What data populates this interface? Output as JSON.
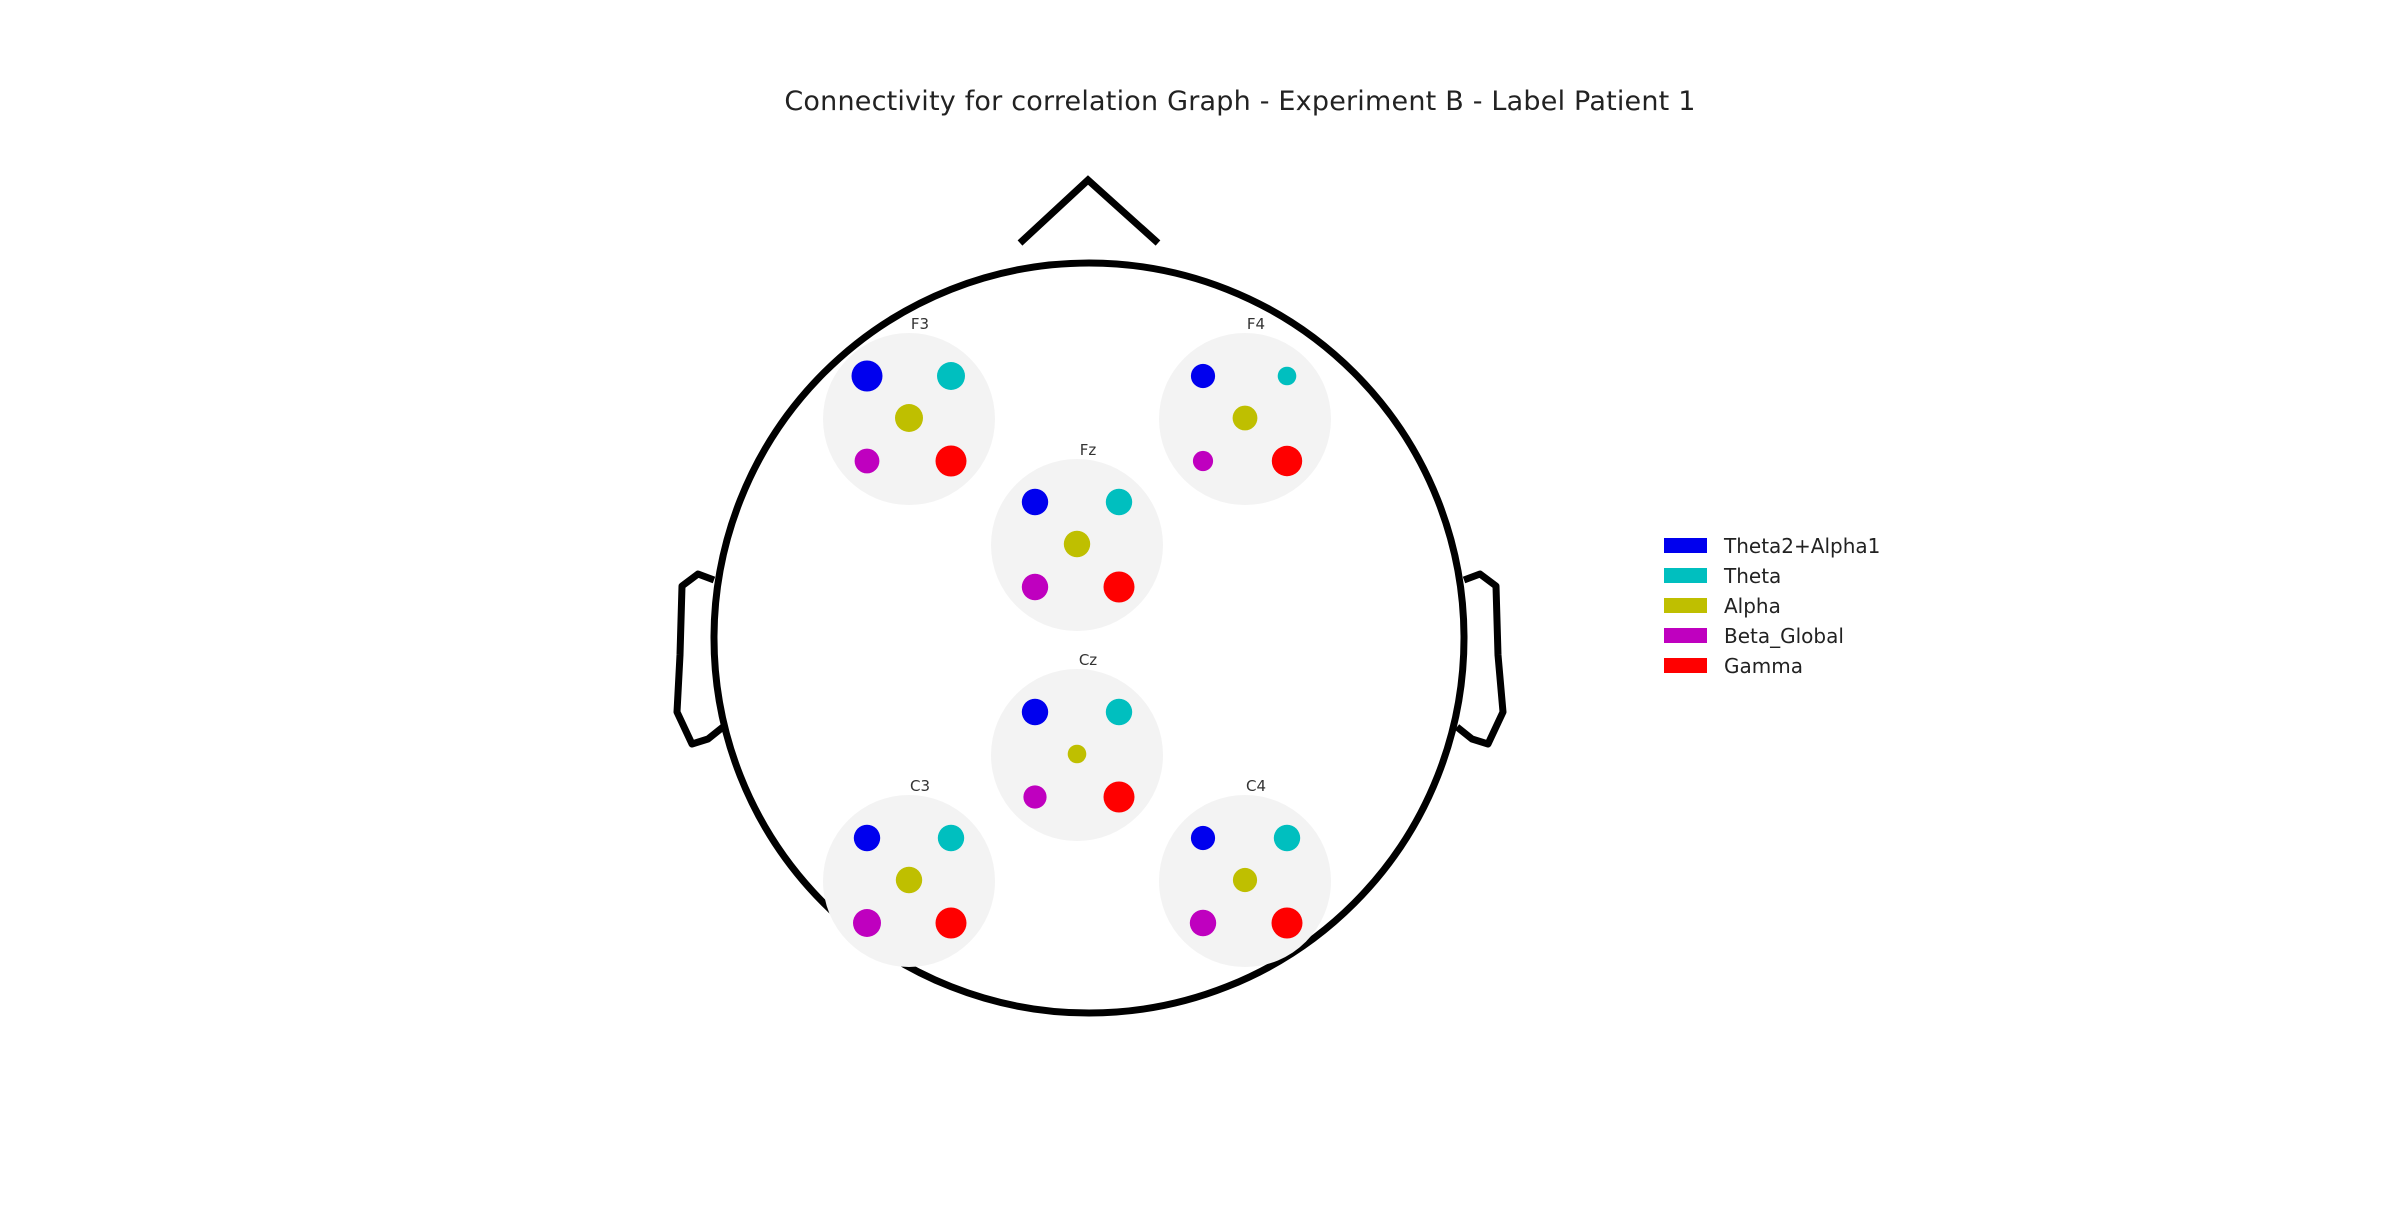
{
  "title": "Connectivity for correlation Graph - Experiment B - Label Patient 1",
  "bands": [
    {
      "name": "Theta2+Alpha1",
      "color": "#0000ee"
    },
    {
      "name": "Theta",
      "color": "#00bfbf"
    },
    {
      "name": "Alpha",
      "color": "#bfbf00"
    },
    {
      "name": "Beta_Global",
      "color": "#bf00bf"
    },
    {
      "name": "Gamma",
      "color": "#ff0000"
    }
  ],
  "electrodes": [
    {
      "label": "F3",
      "strengths": [
        1.0,
        0.9,
        0.9,
        0.8,
        1.0
      ]
    },
    {
      "label": "F4",
      "strengths": [
        0.78,
        0.6,
        0.8,
        0.65,
        0.98
      ]
    },
    {
      "label": "Fz",
      "strengths": [
        0.85,
        0.85,
        0.85,
        0.85,
        1.0
      ]
    },
    {
      "label": "Cz",
      "strengths": [
        0.85,
        0.85,
        0.6,
        0.75,
        1.0
      ]
    },
    {
      "label": "C3",
      "strengths": [
        0.85,
        0.85,
        0.85,
        0.9,
        1.0
      ]
    },
    {
      "label": "C4",
      "strengths": [
        0.78,
        0.85,
        0.78,
        0.85,
        1.0
      ]
    }
  ]
}
